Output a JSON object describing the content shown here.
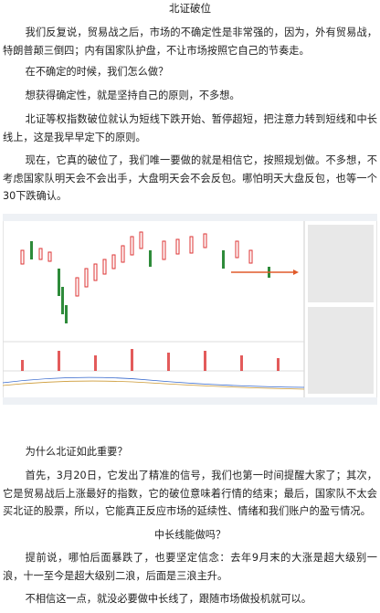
{
  "title": "北证破位",
  "paragraphs": [
    "我们反复说，贸易战之后，市场的不确定性是非常强的，因为，外有贸易战，特朗普颠三倒四；内有国家队护盘，不让市场按照它自己的节奏走。",
    "在不确定的时候，我们怎么做？",
    "想获得确定性，就是坚持自己的原则，不多想。",
    "北证等权指数破位就认为短线下跌开始、暂停超短，把注意力转到短线和中长线上，这是我早早定下的原则。",
    "现在，它真的破位了，我们唯一要做的就是相信它，按照规划做。不多想，不考虑国家队明天会不会出手，大盘明天会不会反包。哪怕明天大盘反包，也等一个30下跌确认。",
    "为什么北证如此重要？",
    "首先，3月20日，它发出了精准的信号，我们也第一时间提醒大家了；其次，它是贸易战后上涨最好的指数，它的破位意味着行情的结束；最后，国家队不太会买北证的股票，所以，它能真正反应市场的延续性、情绪和我们账户的盈亏情况。",
    "中长线能做吗？",
    "提前说，哪怕后面暴跌了，也要坚定信念：去年9月末的大涨是超大级别一浪，十一至今是超大级别二浪，后面是三浪主升。",
    "不相信这一点，就没必要做中长线了，跟随市场做投机就可以。"
  ]
}
